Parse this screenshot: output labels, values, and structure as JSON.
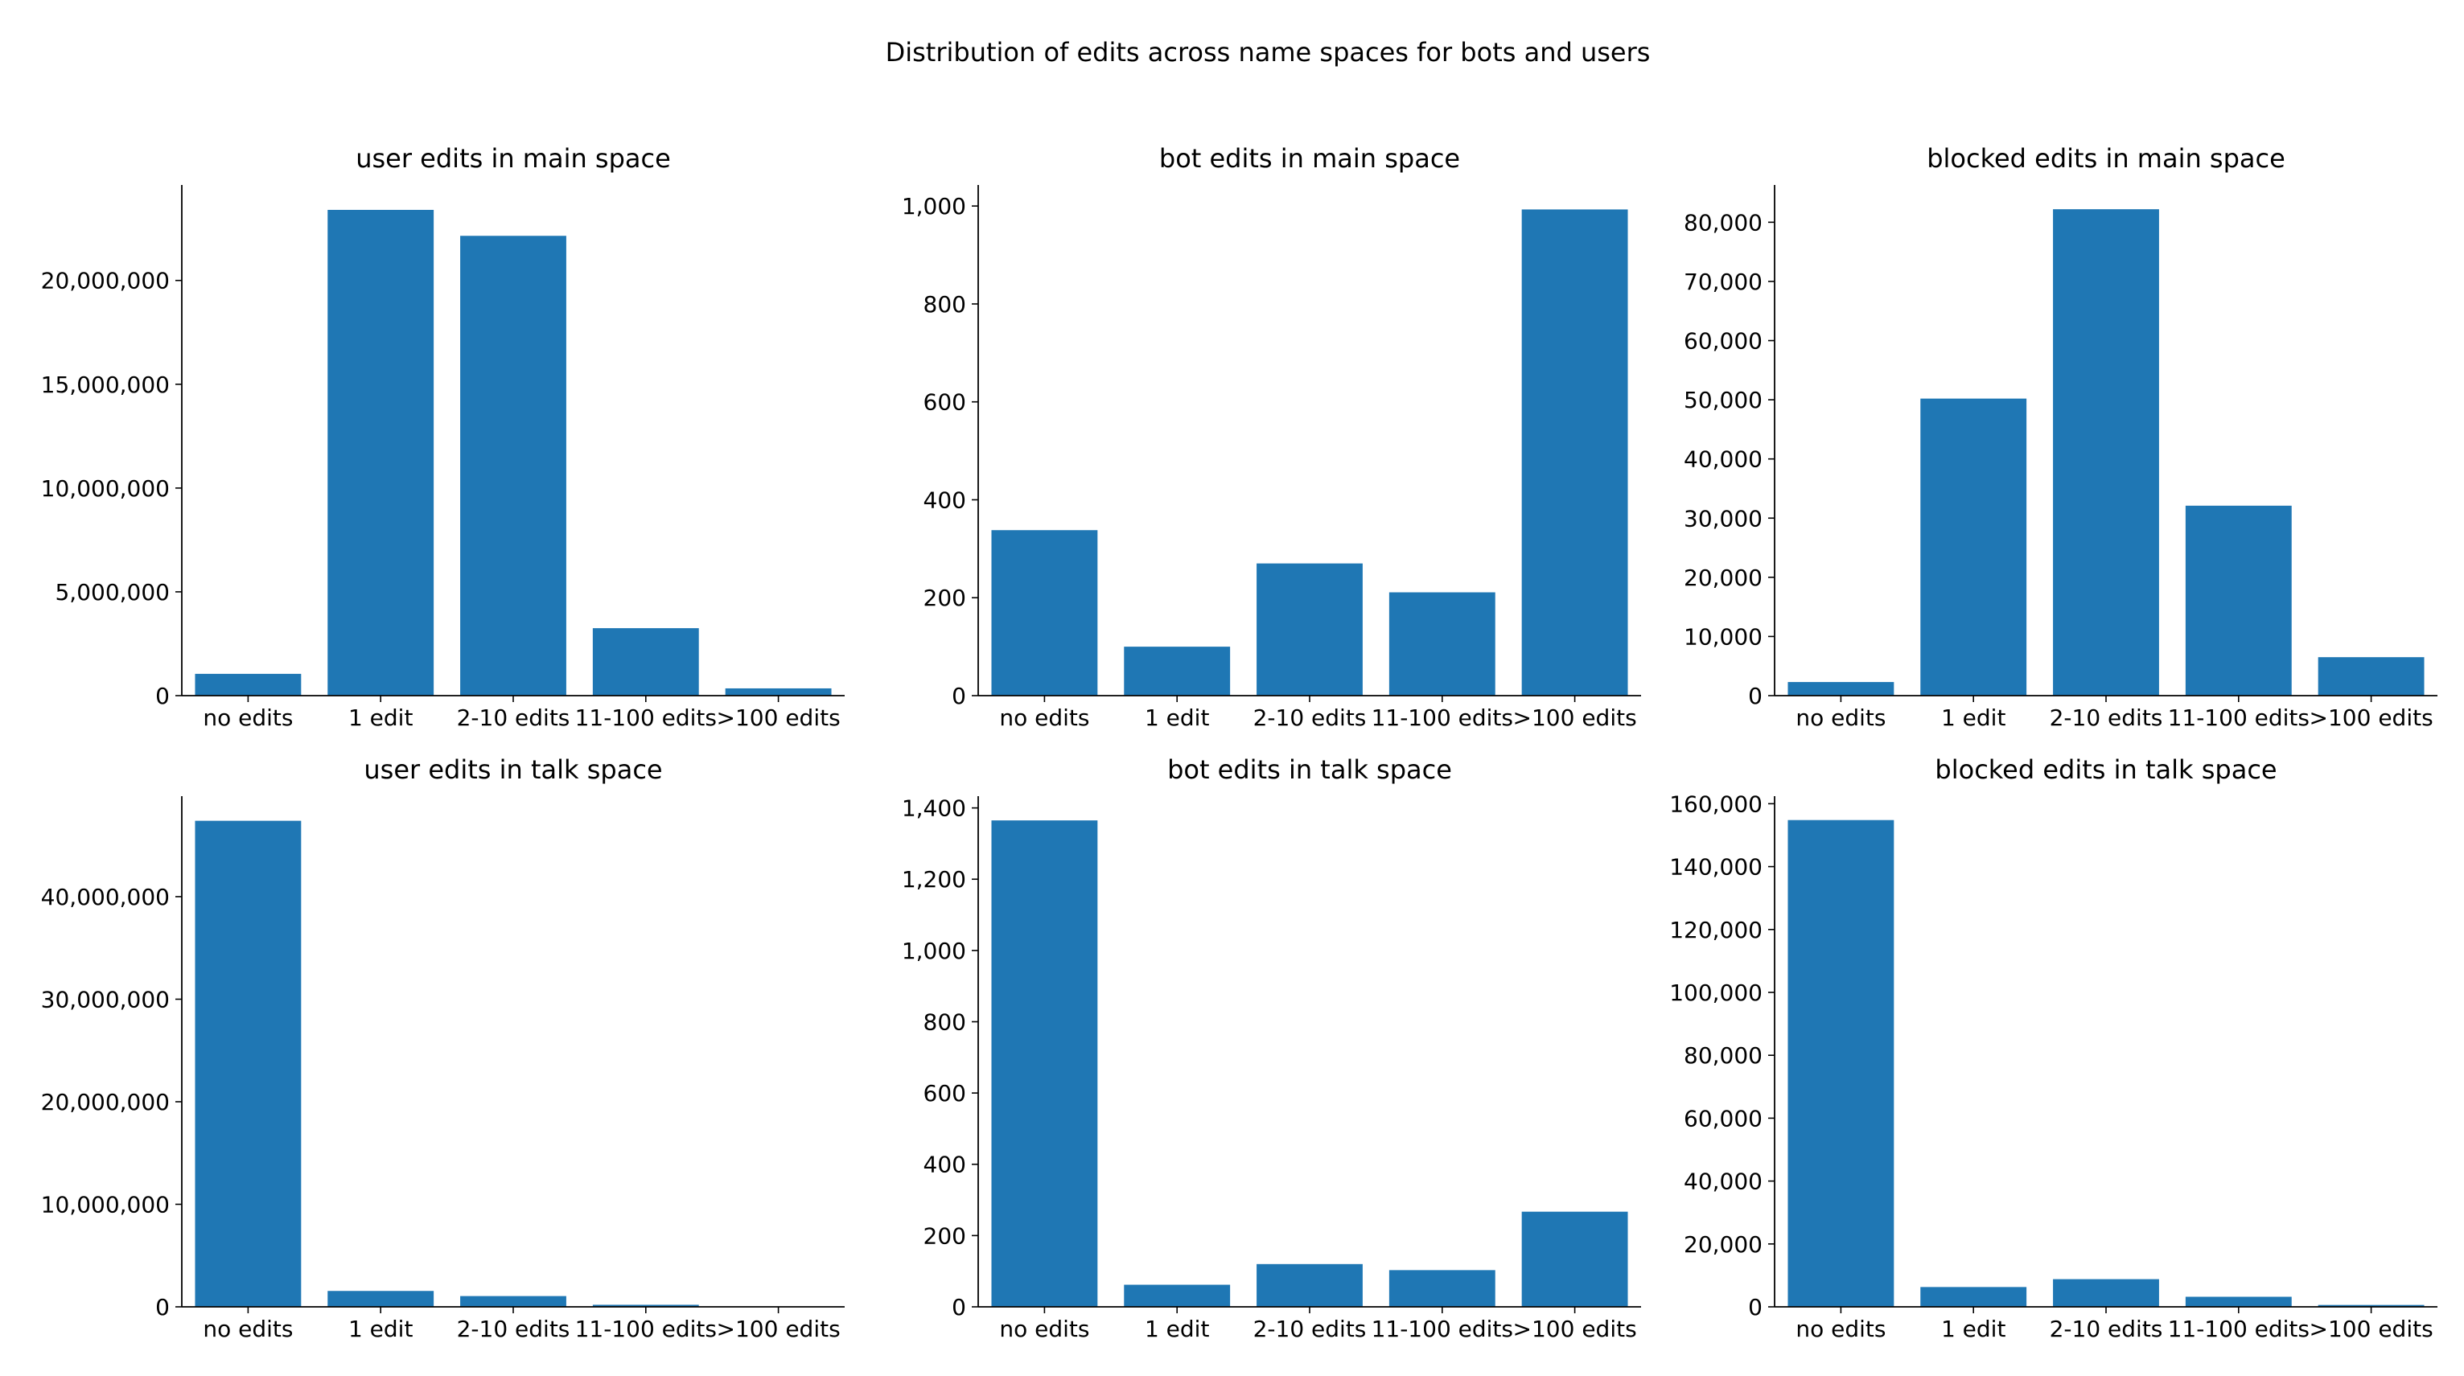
{
  "figure": {
    "title": "Distribution of edits across name spaces for bots and users"
  },
  "chart_data": [
    {
      "type": "bar",
      "title": "user edits in main space",
      "categories": [
        "no edits",
        "1 edit",
        "2-10 edits",
        "11-100 edits",
        ">100 edits"
      ],
      "values": [
        1050000,
        23400000,
        22150000,
        3250000,
        350000
      ],
      "ylim": [
        0,
        24600000
      ],
      "yticks": [
        0,
        5000000,
        10000000,
        15000000,
        20000000
      ],
      "yticklabels": [
        "0",
        "5,000,000",
        "10,000,000",
        "15,000,000",
        "20,000,000"
      ],
      "color": "#1f77b4",
      "grid": false
    },
    {
      "type": "bar",
      "title": "bot edits in main space",
      "categories": [
        "no edits",
        "1 edit",
        "2-10 edits",
        "11-100 edits",
        ">100 edits"
      ],
      "values": [
        338,
        100,
        270,
        211,
        993
      ],
      "ylim": [
        0,
        1043
      ],
      "yticks": [
        0,
        200,
        400,
        600,
        800,
        1000
      ],
      "yticklabels": [
        "0",
        "200",
        "400",
        "600",
        "800",
        "1,000"
      ],
      "color": "#1f77b4",
      "grid": false
    },
    {
      "type": "bar",
      "title": "blocked edits in main space",
      "categories": [
        "no edits",
        "1 edit",
        "2-10 edits",
        "11-100 edits",
        ">100 edits"
      ],
      "values": [
        2300,
        50200,
        82200,
        32100,
        6500
      ],
      "ylim": [
        0,
        86300
      ],
      "yticks": [
        0,
        10000,
        20000,
        30000,
        40000,
        50000,
        60000,
        70000,
        80000
      ],
      "yticklabels": [
        "0",
        "10,000",
        "20,000",
        "30,000",
        "40,000",
        "50,000",
        "60,000",
        "70,000",
        "80,000"
      ],
      "color": "#1f77b4",
      "grid": false
    },
    {
      "type": "bar",
      "title": "user edits in talk space",
      "categories": [
        "no edits",
        "1 edit",
        "2-10 edits",
        "11-100 edits",
        ">100 edits"
      ],
      "values": [
        47400000,
        1550000,
        1050000,
        200000,
        20000
      ],
      "ylim": [
        0,
        49800000
      ],
      "yticks": [
        0,
        10000000,
        20000000,
        30000000,
        40000000
      ],
      "yticklabels": [
        "0",
        "10,000,000",
        "20,000,000",
        "30,000,000",
        "40,000,000"
      ],
      "color": "#1f77b4",
      "grid": false
    },
    {
      "type": "bar",
      "title": "bot edits in talk space",
      "categories": [
        "no edits",
        "1 edit",
        "2-10 edits",
        "11-100 edits",
        ">100 edits"
      ],
      "values": [
        1365,
        62,
        120,
        103,
        267
      ],
      "ylim": [
        0,
        1433
      ],
      "yticks": [
        0,
        200,
        400,
        600,
        800,
        1000,
        1200,
        1400
      ],
      "yticklabels": [
        "0",
        "200",
        "400",
        "600",
        "800",
        "1,000",
        "1,200",
        "1,400"
      ],
      "color": "#1f77b4",
      "grid": false
    },
    {
      "type": "bar",
      "title": "blocked edits in talk space",
      "categories": [
        "no edits",
        "1 edit",
        "2-10 edits",
        "11-100 edits",
        ">100 edits"
      ],
      "values": [
        154800,
        6300,
        8800,
        3200,
        600
      ],
      "ylim": [
        0,
        162400
      ],
      "yticks": [
        0,
        20000,
        40000,
        60000,
        80000,
        100000,
        120000,
        140000,
        160000
      ],
      "yticklabels": [
        "0",
        "20,000",
        "40,000",
        "60,000",
        "80,000",
        "100,000",
        "120,000",
        "140,000",
        "160,000"
      ],
      "color": "#1f77b4",
      "grid": false
    }
  ]
}
